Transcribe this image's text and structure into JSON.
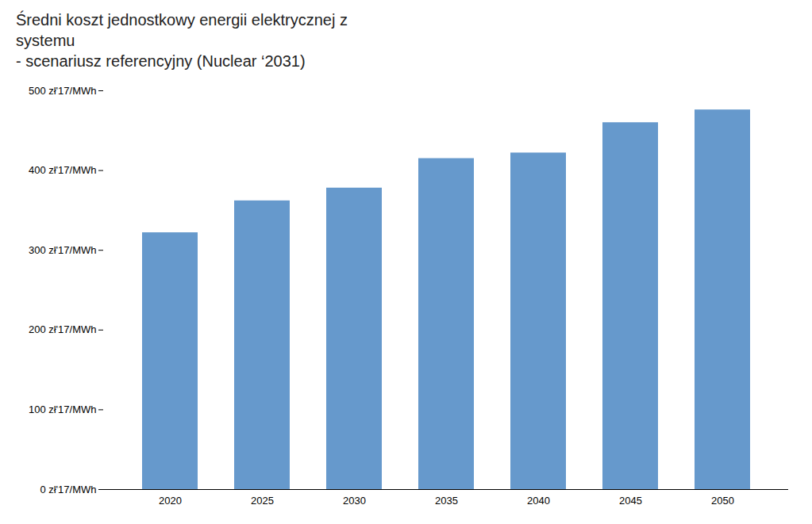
{
  "chart_data": {
    "type": "bar",
    "title": "Średni koszt jednostkowy energii elektrycznej z\nsystemu\n- scenariusz referencyjny (Nuclear ‘2031)",
    "categories": [
      "2020",
      "2025",
      "2030",
      "2035",
      "2040",
      "2045",
      "2050"
    ],
    "values": [
      322,
      362,
      378,
      415,
      422,
      460,
      476
    ],
    "color": "#6699cc",
    "ylim": [
      0,
      500
    ],
    "yticks": [
      {
        "value": 0,
        "label": "0 zł'17/MWh"
      },
      {
        "value": 100,
        "label": "100 zł'17/MWh"
      },
      {
        "value": 200,
        "label": "200 zł'17/MWh"
      },
      {
        "value": 300,
        "label": "300 zł'17/MWh"
      },
      {
        "value": 400,
        "label": "400 zł'17/MWh"
      },
      {
        "value": 500,
        "label": "500 zł'17/MWh"
      }
    ],
    "grid": false
  }
}
